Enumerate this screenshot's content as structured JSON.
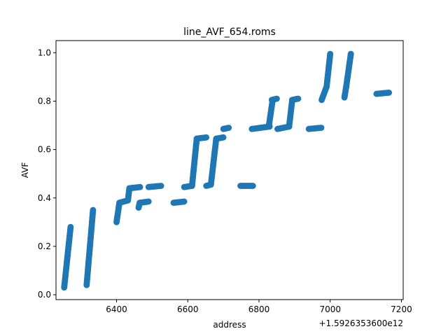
{
  "chart_data": {
    "type": "scatter",
    "title": "line_AVF_654.roms",
    "xlabel": "address",
    "ylabel": "AVF",
    "x_offset_label": "+1.5926353600e12",
    "xlim": [
      6230,
      7205
    ],
    "ylim": [
      -0.02,
      1.05
    ],
    "x_ticks": [
      6400,
      6600,
      6800,
      7000,
      7200
    ],
    "y_ticks": [
      0.0,
      0.2,
      0.4,
      0.6,
      0.8,
      1.0
    ],
    "x_tick_labels": [
      "6400",
      "6600",
      "6800",
      "7000",
      "7200"
    ],
    "y_tick_labels": [
      "0.0",
      "0.2",
      "0.4",
      "0.6",
      "0.8",
      "1.0"
    ],
    "grid": false,
    "legend": "none",
    "marker_color": "#1f77b4",
    "segments": [
      {
        "x0": 6253,
        "x1": 6271,
        "y0": 0.03,
        "y1": 0.28
      },
      {
        "x0": 6316,
        "x1": 6334,
        "y0": 0.04,
        "y1": 0.35
      },
      {
        "x0": 6400,
        "x1": 6408,
        "y0": 0.3,
        "y1": 0.38
      },
      {
        "x0": 6408,
        "x1": 6432,
        "y0": 0.38,
        "y1": 0.39
      },
      {
        "x0": 6432,
        "x1": 6436,
        "y0": 0.39,
        "y1": 0.44
      },
      {
        "x0": 6436,
        "x1": 6466,
        "y0": 0.44,
        "y1": 0.445
      },
      {
        "x0": 6462,
        "x1": 6465,
        "y0": 0.36,
        "y1": 0.38
      },
      {
        "x0": 6465,
        "x1": 6490,
        "y0": 0.38,
        "y1": 0.385
      },
      {
        "x0": 6490,
        "x1": 6525,
        "y0": 0.445,
        "y1": 0.45
      },
      {
        "x0": 6560,
        "x1": 6590,
        "y0": 0.38,
        "y1": 0.385
      },
      {
        "x0": 6590,
        "x1": 6612,
        "y0": 0.445,
        "y1": 0.45
      },
      {
        "x0": 6612,
        "x1": 6625,
        "y0": 0.45,
        "y1": 0.64
      },
      {
        "x0": 6625,
        "x1": 6652,
        "y0": 0.645,
        "y1": 0.65
      },
      {
        "x0": 6652,
        "x1": 6665,
        "y0": 0.45,
        "y1": 0.455
      },
      {
        "x0": 6665,
        "x1": 6680,
        "y0": 0.455,
        "y1": 0.645
      },
      {
        "x0": 6680,
        "x1": 6700,
        "y0": 0.645,
        "y1": 0.65
      },
      {
        "x0": 6700,
        "x1": 6715,
        "y0": 0.685,
        "y1": 0.69
      },
      {
        "x0": 6748,
        "x1": 6783,
        "y0": 0.45,
        "y1": 0.45
      },
      {
        "x0": 6780,
        "x1": 6830,
        "y0": 0.685,
        "y1": 0.695
      },
      {
        "x0": 6828,
        "x1": 6838,
        "y0": 0.7,
        "y1": 0.8
      },
      {
        "x0": 6836,
        "x1": 6850,
        "y0": 0.805,
        "y1": 0.81
      },
      {
        "x0": 6852,
        "x1": 6885,
        "y0": 0.685,
        "y1": 0.695
      },
      {
        "x0": 6885,
        "x1": 6893,
        "y0": 0.7,
        "y1": 0.8
      },
      {
        "x0": 6893,
        "x1": 6910,
        "y0": 0.805,
        "y1": 0.81
      },
      {
        "x0": 6940,
        "x1": 6975,
        "y0": 0.685,
        "y1": 0.69
      },
      {
        "x0": 6976,
        "x1": 6990,
        "y0": 0.805,
        "y1": 0.86
      },
      {
        "x0": 6990,
        "x1": 7000,
        "y0": 0.86,
        "y1": 0.995
      },
      {
        "x0": 7040,
        "x1": 7045,
        "y0": 0.815,
        "y1": 0.86
      },
      {
        "x0": 7045,
        "x1": 7058,
        "y0": 0.86,
        "y1": 0.995
      },
      {
        "x0": 7130,
        "x1": 7165,
        "y0": 0.83,
        "y1": 0.835
      }
    ]
  }
}
